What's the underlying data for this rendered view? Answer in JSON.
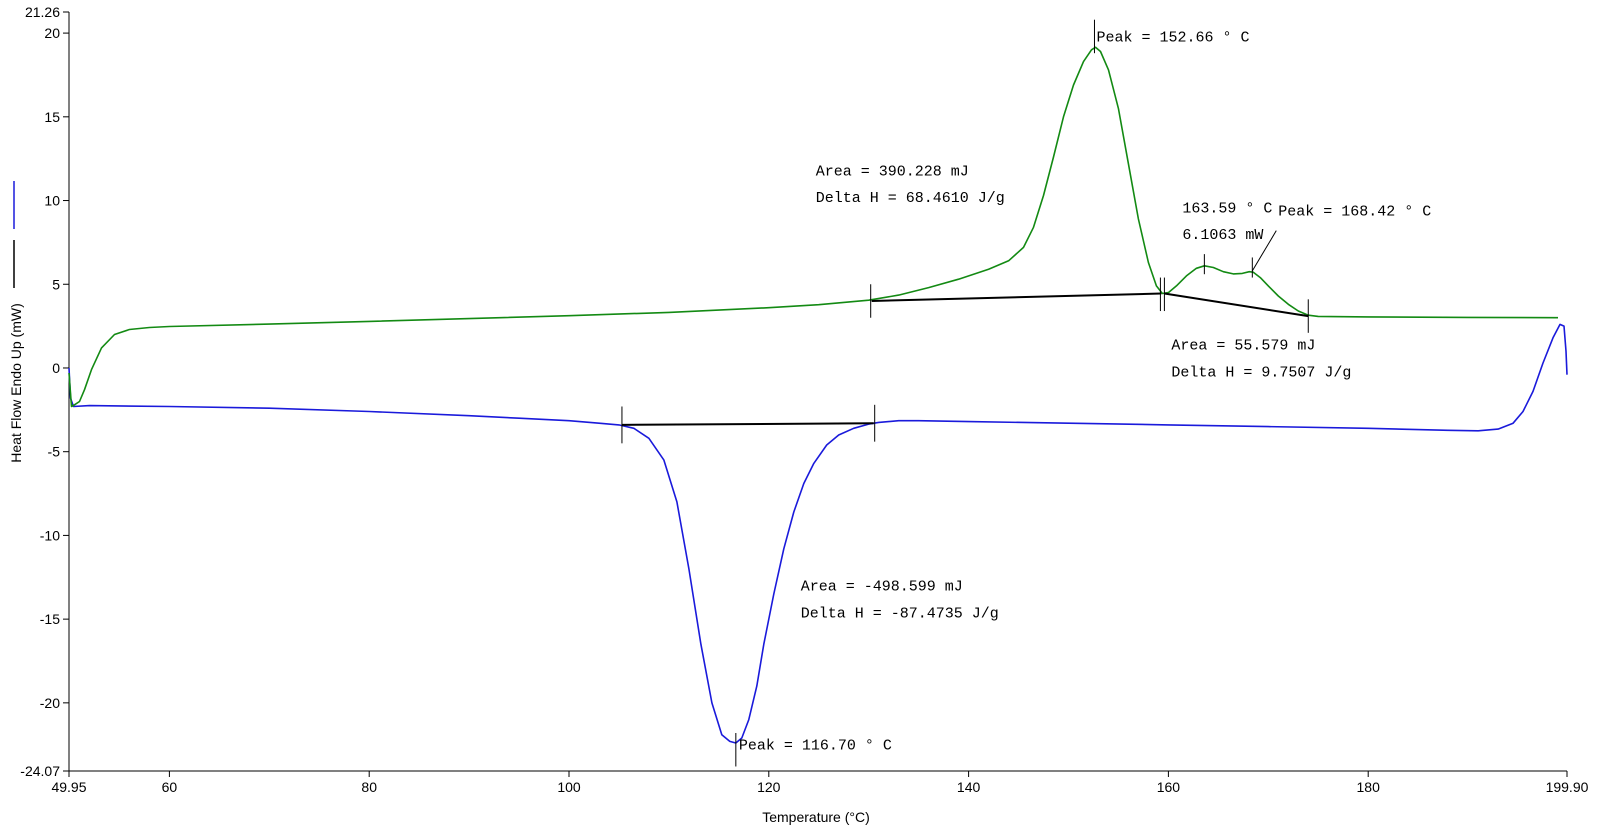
{
  "chart_data": {
    "type": "line",
    "xlabel": "Temperature (°C)",
    "ylabel": "Heat Flow Endo Up (mW)",
    "xlim": [
      49.95,
      199.9
    ],
    "ylim": [
      -24.07,
      21.26
    ],
    "x_ticks": [
      {
        "value": 49.95,
        "label": "49.95"
      },
      {
        "value": 60,
        "label": "60"
      },
      {
        "value": 80,
        "label": "80"
      },
      {
        "value": 100,
        "label": "100"
      },
      {
        "value": 120,
        "label": "120"
      },
      {
        "value": 140,
        "label": "140"
      },
      {
        "value": 160,
        "label": "160"
      },
      {
        "value": 180,
        "label": "180"
      },
      {
        "value": 199.9,
        "label": "199.90"
      }
    ],
    "y_ticks": [
      {
        "value": 21.26,
        "label": "21.26"
      },
      {
        "value": 20,
        "label": "20"
      },
      {
        "value": 15,
        "label": "15"
      },
      {
        "value": 10,
        "label": "10"
      },
      {
        "value": 5,
        "label": "5"
      },
      {
        "value": 0,
        "label": "0"
      },
      {
        "value": -5,
        "label": "-5"
      },
      {
        "value": -10,
        "label": "-10"
      },
      {
        "value": -15,
        "label": "-15"
      },
      {
        "value": -20,
        "label": "-20"
      },
      {
        "value": -24.07,
        "label": "-24.07"
      }
    ],
    "grid": false,
    "legend": {
      "placement": "left",
      "markers": [
        {
          "color": "#1a1adb"
        },
        {
          "color": "#000000"
        }
      ]
    },
    "series": [
      {
        "color": "#1a1adb",
        "points": [
          [
            49.95,
            0
          ],
          [
            50.1,
            -1.8
          ],
          [
            50.4,
            -2.3
          ],
          [
            52,
            -2.25
          ],
          [
            60,
            -2.3
          ],
          [
            70,
            -2.4
          ],
          [
            80,
            -2.6
          ],
          [
            90,
            -2.85
          ],
          [
            95,
            -3.0
          ],
          [
            100,
            -3.15
          ],
          [
            103,
            -3.3
          ],
          [
            105,
            -3.4
          ],
          [
            106.5,
            -3.6
          ],
          [
            108,
            -4.2
          ],
          [
            109.5,
            -5.5
          ],
          [
            110.8,
            -8.0
          ],
          [
            112,
            -12.0
          ],
          [
            113.2,
            -16.5
          ],
          [
            114.3,
            -20.0
          ],
          [
            115.3,
            -21.9
          ],
          [
            116.1,
            -22.3
          ],
          [
            116.7,
            -22.4
          ],
          [
            117.3,
            -22.1
          ],
          [
            118,
            -21.0
          ],
          [
            118.8,
            -19.0
          ],
          [
            119.5,
            -16.5
          ],
          [
            120.5,
            -13.5
          ],
          [
            121.5,
            -10.8
          ],
          [
            122.5,
            -8.6
          ],
          [
            123.5,
            -6.9
          ],
          [
            124.5,
            -5.7
          ],
          [
            125.8,
            -4.6
          ],
          [
            127,
            -4.0
          ],
          [
            128.5,
            -3.6
          ],
          [
            130,
            -3.35
          ],
          [
            131,
            -3.25
          ],
          [
            133,
            -3.15
          ],
          [
            135,
            -3.15
          ],
          [
            140,
            -3.2
          ],
          [
            150,
            -3.3
          ],
          [
            160,
            -3.4
          ],
          [
            170,
            -3.5
          ],
          [
            180,
            -3.6
          ],
          [
            188,
            -3.72
          ],
          [
            191,
            -3.75
          ],
          [
            193,
            -3.65
          ],
          [
            194.5,
            -3.3
          ],
          [
            195.5,
            -2.6
          ],
          [
            196.5,
            -1.4
          ],
          [
            197.5,
            0.3
          ],
          [
            198.5,
            1.8
          ],
          [
            199.2,
            2.6
          ],
          [
            199.6,
            2.5
          ],
          [
            199.8,
            1.0
          ],
          [
            199.9,
            -0.4
          ]
        ]
      },
      {
        "color": "#138a13",
        "points": [
          [
            49.95,
            -0.3
          ],
          [
            50.2,
            -2.3
          ],
          [
            50.5,
            -2.2
          ],
          [
            51,
            -2.0
          ],
          [
            51.5,
            -1.3
          ],
          [
            52.2,
            -0.1
          ],
          [
            53.2,
            1.2
          ],
          [
            54.5,
            2.0
          ],
          [
            56,
            2.3
          ],
          [
            58,
            2.42
          ],
          [
            60,
            2.48
          ],
          [
            70,
            2.62
          ],
          [
            80,
            2.78
          ],
          [
            90,
            2.95
          ],
          [
            100,
            3.12
          ],
          [
            110,
            3.32
          ],
          [
            120,
            3.6
          ],
          [
            125,
            3.78
          ],
          [
            130,
            4.05
          ],
          [
            133,
            4.35
          ],
          [
            136,
            4.8
          ],
          [
            139,
            5.3
          ],
          [
            142,
            5.9
          ],
          [
            144,
            6.4
          ],
          [
            145.5,
            7.2
          ],
          [
            146.5,
            8.4
          ],
          [
            147.5,
            10.3
          ],
          [
            148.5,
            12.6
          ],
          [
            149.5,
            15.0
          ],
          [
            150.5,
            16.9
          ],
          [
            151.5,
            18.3
          ],
          [
            152.3,
            19.0
          ],
          [
            152.7,
            19.15
          ],
          [
            153.2,
            18.9
          ],
          [
            154,
            17.8
          ],
          [
            155,
            15.5
          ],
          [
            156,
            12.2
          ],
          [
            157,
            8.9
          ],
          [
            158,
            6.3
          ],
          [
            158.8,
            4.9
          ],
          [
            159.4,
            4.45
          ],
          [
            160,
            4.5
          ],
          [
            160.8,
            4.9
          ],
          [
            161.8,
            5.5
          ],
          [
            162.8,
            5.95
          ],
          [
            163.6,
            6.1
          ],
          [
            164.5,
            6.0
          ],
          [
            165.5,
            5.75
          ],
          [
            166.5,
            5.62
          ],
          [
            167.4,
            5.65
          ],
          [
            168.1,
            5.75
          ],
          [
            168.5,
            5.72
          ],
          [
            169.2,
            5.4
          ],
          [
            170,
            4.9
          ],
          [
            171,
            4.3
          ],
          [
            172,
            3.8
          ],
          [
            173,
            3.4
          ],
          [
            174,
            3.15
          ],
          [
            175,
            3.08
          ],
          [
            180,
            3.05
          ],
          [
            190,
            3.02
          ],
          [
            199,
            3.0
          ]
        ]
      },
      {
        "color": "#000000",
        "points": [
          [
            105.3,
            -3.4
          ],
          [
            130.5,
            -3.3
          ]
        ]
      },
      {
        "color": "#000000",
        "points": [
          [
            130.3,
            4.0
          ],
          [
            159.3,
            4.45
          ]
        ]
      },
      {
        "color": "#000000",
        "points": [
          [
            159.6,
            4.45
          ],
          [
            174.0,
            3.1
          ]
        ]
      }
    ],
    "markers": [
      {
        "x": 105.3,
        "y": -3.4,
        "span": 2.2
      },
      {
        "x": 130.6,
        "y": -3.3,
        "span": 2.2
      },
      {
        "x": 116.7,
        "y": -22.8,
        "span": 2.0
      },
      {
        "x": 130.2,
        "y": 4.0,
        "span": 2.0
      },
      {
        "x": 152.6,
        "y": 19.8,
        "span": 2.0
      },
      {
        "x": 159.2,
        "y": 4.4,
        "span": 2.0
      },
      {
        "x": 159.6,
        "y": 4.4,
        "span": 2.0
      },
      {
        "x": 163.6,
        "y": 6.2,
        "span": 1.2
      },
      {
        "x": 168.4,
        "y": 6.0,
        "span": 1.2
      },
      {
        "x": 174.0,
        "y": 3.1,
        "span": 2.0
      }
    ],
    "leaders": [
      {
        "x1": 168.4,
        "y1": 5.8,
        "x2": 170.8,
        "y2": 8.2
      }
    ],
    "annotations": [
      {
        "text": "Peak = 152.66 ° C",
        "x": 152.8,
        "y": 19.5
      },
      {
        "text": "Area = 390.228 mJ",
        "x": 124.7,
        "y": 11.5
      },
      {
        "text": "Delta H = 68.4610 J/g",
        "x": 124.7,
        "y": 9.9
      },
      {
        "text": "163.59 ° C",
        "x": 161.4,
        "y": 9.3
      },
      {
        "text": "6.1063 mW",
        "x": 161.4,
        "y": 7.7
      },
      {
        "text": "Peak = 168.42 ° C",
        "x": 171.0,
        "y": 9.1
      },
      {
        "text": "Area = 55.579 mJ",
        "x": 160.3,
        "y": 1.1
      },
      {
        "text": "Delta H = 9.7507 J/g",
        "x": 160.3,
        "y": -0.5
      },
      {
        "text": "Area = -498.599 mJ",
        "x": 123.2,
        "y": -13.3
      },
      {
        "text": "Delta H = -87.4735 J/g",
        "x": 123.2,
        "y": -14.9
      },
      {
        "text": "Peak = 116.70 ° C",
        "x": 117.0,
        "y": -22.8
      }
    ]
  }
}
